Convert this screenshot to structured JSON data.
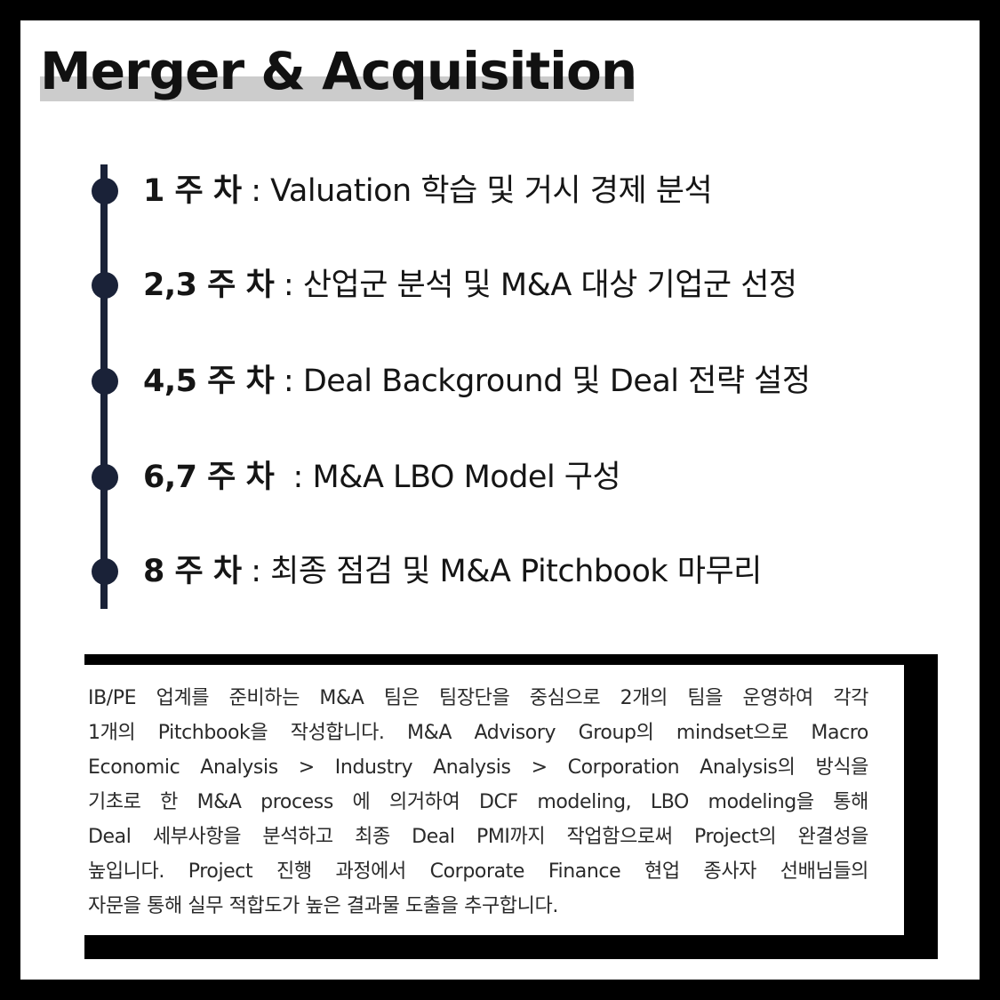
{
  "title": "Merger & Acquisition",
  "colors": {
    "frame": "#000000",
    "timeline": "#1a2238",
    "title_highlight": "#cccccc"
  },
  "schedule": [
    {
      "label": "1 주 차",
      "separator": " : ",
      "text": "Valuation 학습 및 거시 경제 분석"
    },
    {
      "label": "2,3 주 차",
      "separator": " : ",
      "text": "산업군 분석 및 M&A 대상 기업군 선정"
    },
    {
      "label": "4,5 주 차",
      "separator": " : ",
      "text": "Deal Background 및 Deal 전략 설정"
    },
    {
      "label": "6,7 주 차",
      "separator": "  : ",
      "text": "M&A LBO Model 구성"
    },
    {
      "label": "8 주 차",
      "separator": " : ",
      "text": "최종 점검 및 M&A Pitchbook 마무리"
    }
  ],
  "description_lines": [
    "IB/PE 업계를 준비하는 M&A 팀은 팀장단을 중심으로 2개의 팀을 운영하여 각각",
    "1개의 Pitchbook을 작성합니다. M&A Advisory Group의 mindset으로 Macro",
    "Economic Analysis > Industry Analysis > Corporation Analysis의 방식을",
    "기초로 한 M&A process 에 의거하여 DCF modeling, LBO modeling을 통해",
    "Deal 세부사항을 분석하고 최종 Deal PMI까지 작업함으로써 Project의 완결성을",
    "높입니다. Project 진행 과정에서 Corporate Finance 현업 종사자 선배님들의",
    "자문을 통해 실무 적합도가 높은 결과물 도출을 추구합니다."
  ]
}
